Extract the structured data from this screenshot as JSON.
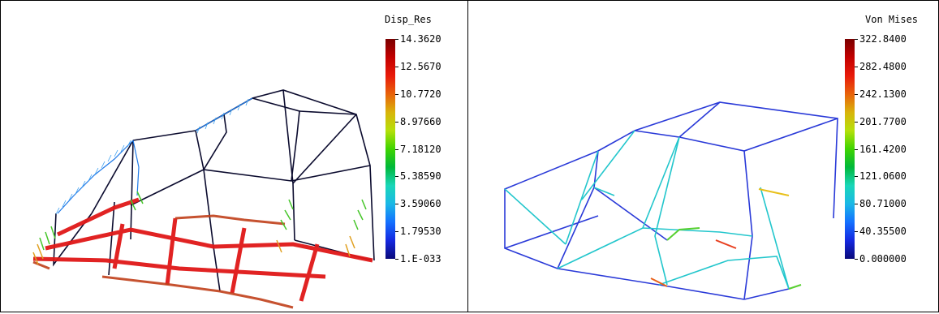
{
  "left_panel": {
    "legend_title": "Disp_Res",
    "legend_values": [
      "14.3620",
      "12.5670",
      "10.7720",
      "8.97660",
      "7.18120",
      "5.38590",
      "3.59060",
      "1.79530",
      "1.E-033"
    ]
  },
  "right_panel": {
    "legend_title": "Von Mises",
    "legend_values": [
      "322.8400",
      "282.4800",
      "242.1300",
      "201.7700",
      "161.4200",
      "121.0600",
      "80.71000",
      "40.35500",
      "0.000000"
    ]
  },
  "colormap": [
    "#7a0000",
    "#c20000",
    "#e81a0a",
    "#e8620a",
    "#d9b30a",
    "#b5e00a",
    "#3fd400",
    "#00b83a",
    "#19d6b8",
    "#1ab8e6",
    "#1470ff",
    "#1428e0",
    "#0a0a7a"
  ]
}
